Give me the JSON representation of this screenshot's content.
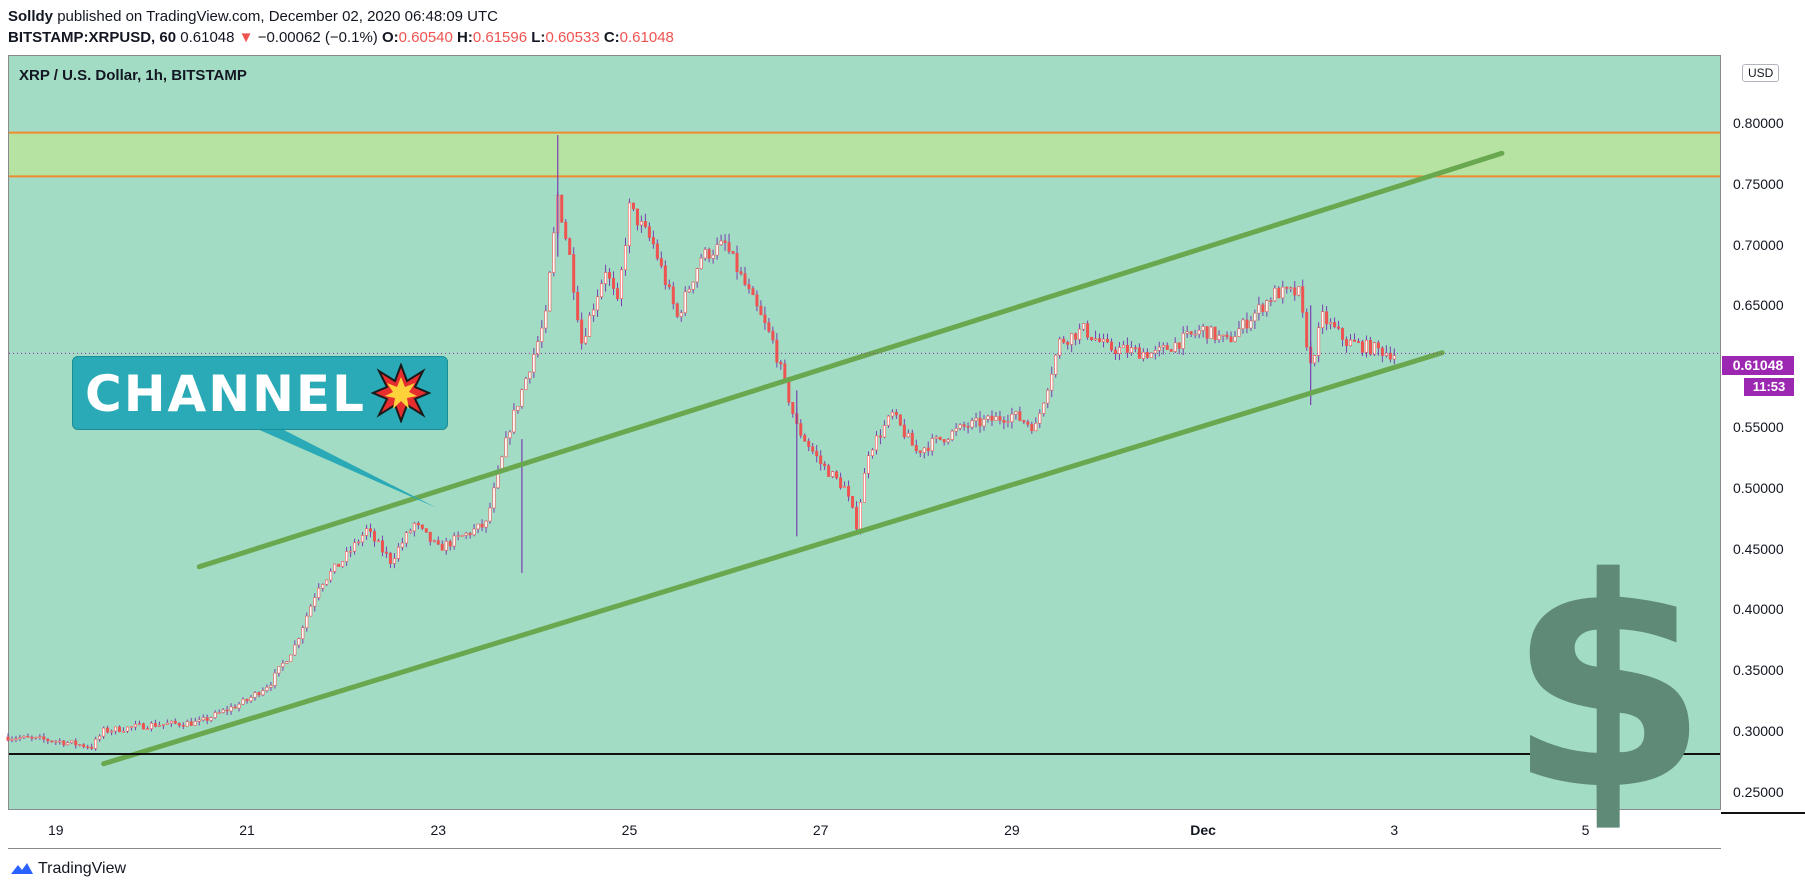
{
  "header": {
    "author": "Solldy",
    "published_text": "published on TradingView.com, December 02, 2020 06:48:09 UTC",
    "symbol_interval": "BITSTAMP:XRPUSD, 60",
    "last_price": "0.61048",
    "change": "−0.00062 (−0.1%)",
    "open_label": "O:",
    "open": "0.60540",
    "high_label": "H:",
    "high": "0.61596",
    "low_label": "L:",
    "low": "0.60533",
    "close_label": "C:",
    "close": "0.61048"
  },
  "footer": {
    "brand": "TradingView"
  },
  "price_axis": {
    "currency": "USD",
    "current_price": "0.61048",
    "countdown": "11:53"
  },
  "annotation": {
    "text": "CHANNEL"
  },
  "colors": {
    "background": "#a3dcc4",
    "up_candle": "#ffffff",
    "down_candle": "#ef5350",
    "channel_line": "#6aa84f",
    "zone_fill": "#b6e3a2",
    "zone_border": "#f08a30",
    "callout": "#2aaab6",
    "price_label": "#9c27b0"
  },
  "chart_data": {
    "type": "candlestick",
    "title": "XRP / U.S. Dollar, 1h, BITSTAMP",
    "xlabel": "",
    "ylabel": "",
    "x_ticks": [
      "19",
      "21",
      "23",
      "25",
      "27",
      "29",
      "Dec",
      "3",
      "5"
    ],
    "y_ticks": [
      "0.25000",
      "0.30000",
      "0.35000",
      "0.40000",
      "0.45000",
      "0.50000",
      "0.55000",
      "0.60000",
      "0.65000",
      "0.70000",
      "0.75000",
      "0.80000"
    ],
    "ylim": [
      0.235,
      0.855
    ],
    "xlim": [
      "2020-11-18T12:00",
      "2020-12-06T10:00"
    ],
    "price_path": [
      [
        "2020-11-18T12:00",
        0.295
      ],
      [
        "2020-11-19T00:00",
        0.292
      ],
      [
        "2020-11-19T09:00",
        0.287
      ],
      [
        "2020-11-19T12:00",
        0.3
      ],
      [
        "2020-11-20T00:00",
        0.305
      ],
      [
        "2020-11-20T12:00",
        0.307
      ],
      [
        "2020-11-21T00:00",
        0.325
      ],
      [
        "2020-11-21T06:00",
        0.34
      ],
      [
        "2020-11-21T12:00",
        0.37
      ],
      [
        "2020-11-21T18:00",
        0.42
      ],
      [
        "2020-11-22T00:00",
        0.44
      ],
      [
        "2020-11-22T06:00",
        0.465
      ],
      [
        "2020-11-22T12:00",
        0.44
      ],
      [
        "2020-11-22T18:00",
        0.47
      ],
      [
        "2020-11-23T00:00",
        0.45
      ],
      [
        "2020-11-23T06:00",
        0.46
      ],
      [
        "2020-11-23T12:00",
        0.47
      ],
      [
        "2020-11-23T18:00",
        0.55
      ],
      [
        "2020-11-24T00:00",
        0.61
      ],
      [
        "2020-11-24T03:00",
        0.64
      ],
      [
        "2020-11-24T06:00",
        0.74
      ],
      [
        "2020-11-24T09:00",
        0.69
      ],
      [
        "2020-11-24T12:00",
        0.62
      ],
      [
        "2020-11-24T18:00",
        0.68
      ],
      [
        "2020-11-24T21:00",
        0.65
      ],
      [
        "2020-11-25T00:00",
        0.73
      ],
      [
        "2020-11-25T06:00",
        0.7
      ],
      [
        "2020-11-25T12:00",
        0.64
      ],
      [
        "2020-11-25T18:00",
        0.69
      ],
      [
        "2020-11-26T00:00",
        0.7
      ],
      [
        "2020-11-26T06:00",
        0.66
      ],
      [
        "2020-11-26T12:00",
        0.62
      ],
      [
        "2020-11-26T18:00",
        0.55
      ],
      [
        "2020-11-27T00:00",
        0.52
      ],
      [
        "2020-11-27T06:00",
        0.5
      ],
      [
        "2020-11-27T09:00",
        0.47
      ],
      [
        "2020-11-27T12:00",
        0.53
      ],
      [
        "2020-11-27T18:00",
        0.56
      ],
      [
        "2020-11-28T00:00",
        0.53
      ],
      [
        "2020-11-28T12:00",
        0.55
      ],
      [
        "2020-11-29T00:00",
        0.56
      ],
      [
        "2020-11-29T06:00",
        0.55
      ],
      [
        "2020-11-29T12:00",
        0.62
      ],
      [
        "2020-11-29T18:00",
        0.63
      ],
      [
        "2020-11-30T00:00",
        0.615
      ],
      [
        "2020-11-30T12:00",
        0.61
      ],
      [
        "2020-12-01T00:00",
        0.63
      ],
      [
        "2020-12-01T06:00",
        0.62
      ],
      [
        "2020-12-01T12:00",
        0.64
      ],
      [
        "2020-12-01T18:00",
        0.66
      ],
      [
        "2020-12-02T00:00",
        0.66
      ],
      [
        "2020-12-02T03:00",
        0.6
      ],
      [
        "2020-12-02T06:00",
        0.64
      ],
      [
        "2020-12-02T12:00",
        0.62
      ],
      [
        "2020-12-02T18:00",
        0.615
      ],
      [
        "2020-12-03T00:00",
        0.61
      ]
    ],
    "spikes": [
      {
        "x": "2020-11-24T06:00",
        "high": 0.79,
        "low": 0.69
      },
      {
        "x": "2020-11-23T21:00",
        "high": 0.54,
        "low": 0.43
      },
      {
        "x": "2020-11-26T18:00",
        "high": 0.58,
        "low": 0.46
      },
      {
        "x": "2020-12-02T03:00",
        "high": 0.65,
        "low": 0.568
      }
    ],
    "channel": {
      "upper": [
        [
          "2020-11-20T12:00",
          0.435
        ],
        [
          "2020-12-04T03:00",
          0.775
        ]
      ],
      "lower": [
        [
          "2020-11-19T12:00",
          0.273
        ],
        [
          "2020-12-03T12:00",
          0.611
        ]
      ]
    },
    "resistance_zone": [
      0.756,
      0.792
    ],
    "support_line": 0.281,
    "last_price_line": 0.6105
  }
}
